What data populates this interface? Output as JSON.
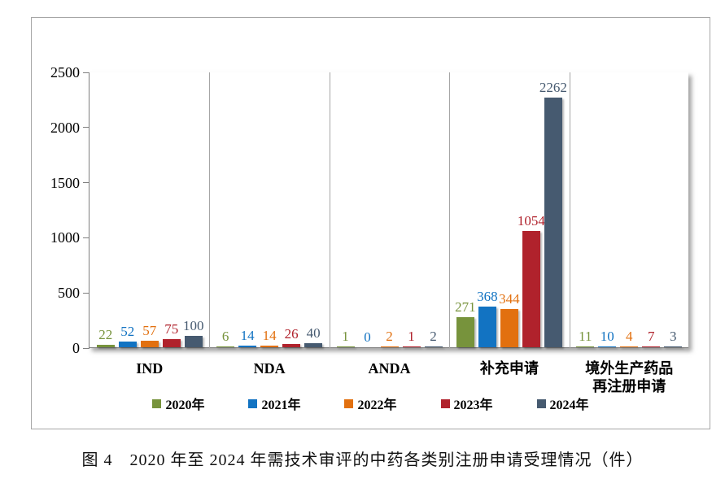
{
  "chart_data": {
    "type": "bar",
    "categories": [
      "IND",
      "NDA",
      "ANDA",
      "补充申请",
      "境外生产药品\n再注册申请"
    ],
    "series": [
      {
        "name": "2020年",
        "color": "#77933C",
        "values": [
          22,
          6,
          1,
          271,
          11
        ]
      },
      {
        "name": "2021年",
        "color": "#1273C2",
        "values": [
          52,
          14,
          0,
          368,
          10
        ]
      },
      {
        "name": "2022年",
        "color": "#E2700F",
        "values": [
          57,
          14,
          2,
          344,
          4
        ]
      },
      {
        "name": "2023年",
        "color": "#B0222C",
        "values": [
          75,
          26,
          1,
          1054,
          7
        ]
      },
      {
        "name": "2024年",
        "color": "#465A70",
        "values": [
          100,
          40,
          2,
          2262,
          3
        ]
      }
    ],
    "ylim": [
      0,
      2500
    ],
    "yticks": [
      0,
      500,
      1000,
      1500,
      2000,
      2500
    ],
    "grid": "vertical-category-separators",
    "legend_position": "bottom",
    "bar_labels_shown": true,
    "title": "图 4　2020 年至 2024 年需技术审评的中药各类别注册申请受理情况（件）"
  },
  "colors": {
    "frame_border": "#a6a6a6",
    "axis_line": "#808080",
    "divider_line": "#a6a6a6",
    "text": "#000000"
  }
}
